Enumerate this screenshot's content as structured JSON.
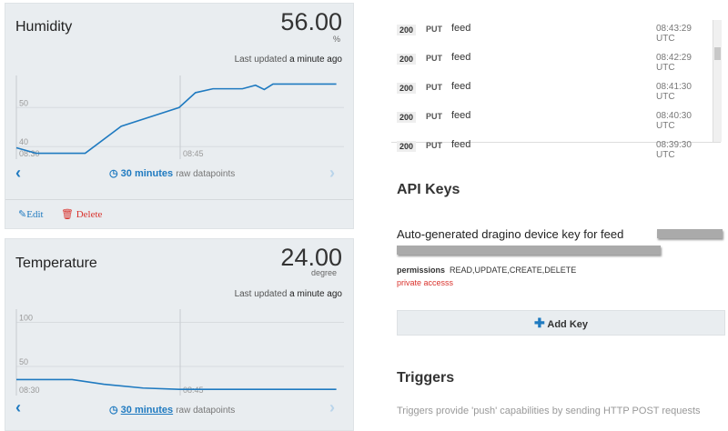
{
  "panels": [
    {
      "title": "Humidity",
      "value": "56.00",
      "unit": "%",
      "updated_prefix": "Last updated",
      "updated": "a minute ago",
      "chart": {
        "type": "line",
        "color": "#1f7ac0",
        "x": [
          0,
          1.8,
          6.3,
          9.6,
          14.9,
          16.4,
          18,
          20.7,
          21.9,
          22.7,
          23.5,
          29.3
        ],
        "values": [
          39.7,
          38.3,
          38.3,
          45.2,
          50,
          53.8,
          54.8,
          54.8,
          55.7,
          54.6,
          56,
          56
        ],
        "xlim": [
          0,
          30
        ],
        "ylim": [
          36.8,
          58.2
        ],
        "xticks": [
          {
            "value": 0,
            "label": "08:30"
          },
          {
            "value": 15,
            "label": "08:45"
          }
        ],
        "yticks": [
          40,
          50
        ]
      },
      "range": "30 minutes",
      "range_note": "raw datapoints",
      "actions": [
        "Edit",
        "Delete"
      ]
    },
    {
      "title": "Temperature",
      "value": "24.00",
      "unit": "degree",
      "updated_prefix": "Last updated",
      "updated": "a minute ago",
      "chart": {
        "type": "line",
        "color": "#1f7ac0",
        "x": [
          0,
          5.1,
          8,
          11.6,
          14.9,
          29.3
        ],
        "values": [
          35.1,
          35.1,
          29.8,
          25.5,
          24,
          24
        ],
        "xlim": [
          0,
          30
        ],
        "ylim": [
          17,
          114.9
        ],
        "xticks": [
          {
            "value": 0,
            "label": "08:30"
          },
          {
            "value": 15,
            "label": "08:45"
          }
        ],
        "yticks": [
          50,
          100
        ]
      },
      "range": "30 minutes",
      "range_note": "raw datapoints"
    }
  ],
  "log": {
    "rows": [
      [
        "200",
        "PUT",
        "feed",
        "08:43:29 UTC"
      ],
      [
        "200",
        "PUT",
        "feed",
        "08:42:29 UTC"
      ],
      [
        "200",
        "PUT",
        "feed",
        "08:41:30 UTC"
      ],
      [
        "200",
        "PUT",
        "feed",
        "08:40:30 UTC"
      ],
      [
        "200",
        "PUT",
        "feed",
        "08:39:30 UTC"
      ]
    ]
  },
  "api_keys": {
    "title": "API Keys",
    "key_label": "Auto-generated dragino device key for feed",
    "permissions_label": "permissions",
    "permissions": "READ,UPDATE,CREATE,DELETE",
    "access": "private accesss",
    "button": "Add Key"
  },
  "triggers": {
    "title": "Triggers",
    "text": "Triggers provide 'push' capabilities by sending HTTP POST requests"
  }
}
